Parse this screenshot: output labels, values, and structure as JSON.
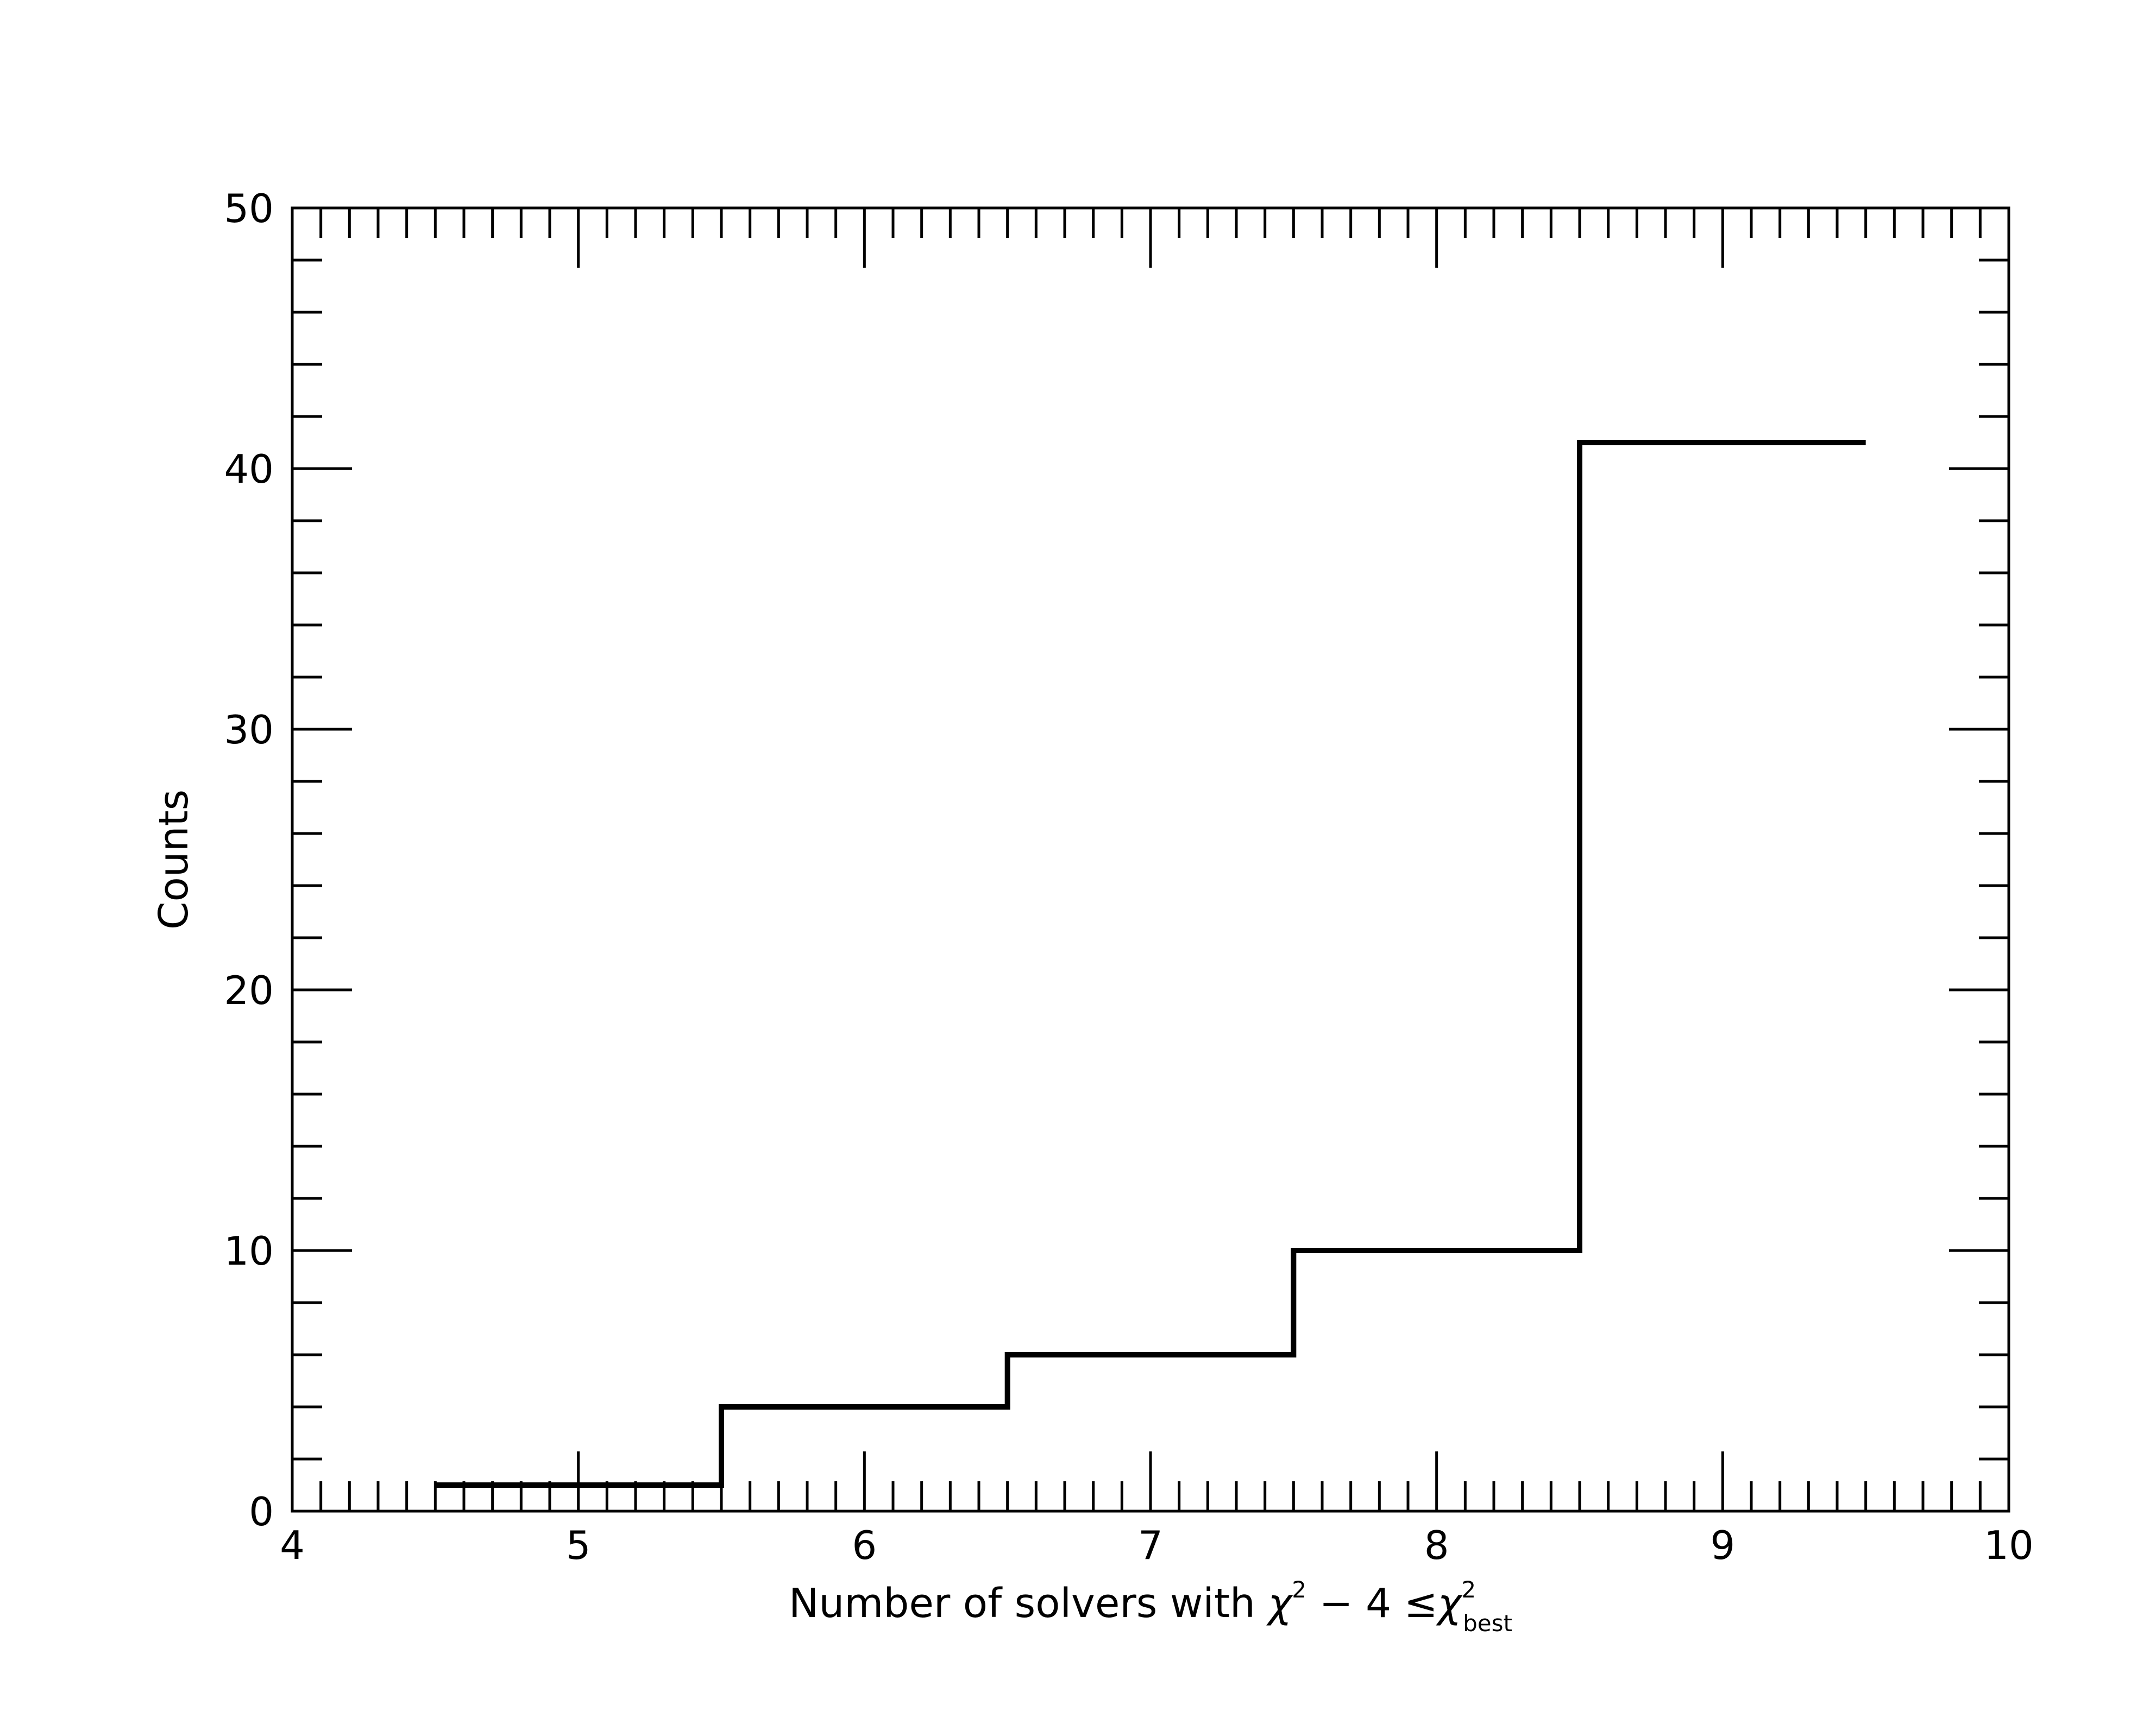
{
  "chart_data": {
    "type": "histogram",
    "title": "",
    "xlabel": {
      "main": "Number of solvers with ",
      "chi": "χ",
      "sup2": "2",
      "minus4": " − 4 ≤",
      "chi_best": "χ",
      "sup2_best": "2",
      "sub_best": "best"
    },
    "ylabel": "Counts",
    "xlim": [
      4,
      10
    ],
    "ylim": [
      0,
      50
    ],
    "xticks": [
      4,
      5,
      6,
      7,
      8,
      9,
      10
    ],
    "xtick_labels": [
      "4",
      "5",
      "6",
      "7",
      "8",
      "9",
      "10"
    ],
    "yticks": [
      0,
      10,
      20,
      30,
      40,
      50
    ],
    "ytick_labels": [
      "0",
      "10",
      "20",
      "30",
      "40",
      "50"
    ],
    "bin_centers": [
      5,
      6,
      7,
      8,
      9
    ],
    "bin_edges": [
      4.5,
      5.5,
      6.5,
      7.5,
      8.5,
      9.5
    ],
    "counts": [
      1,
      4,
      6,
      10,
      41
    ],
    "line_color": "#000000",
    "grid": false
  }
}
